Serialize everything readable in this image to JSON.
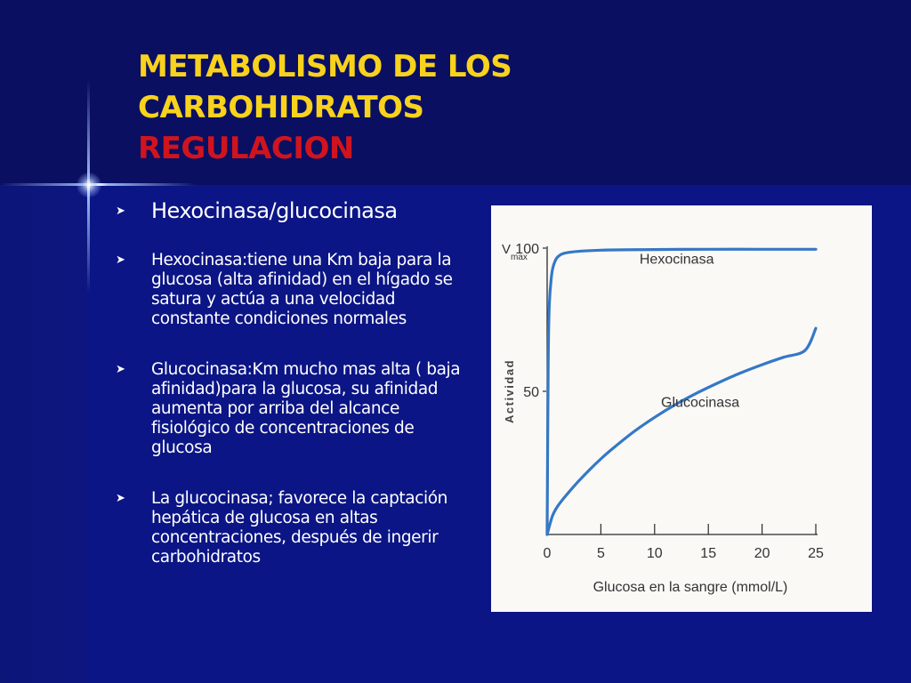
{
  "slide": {
    "title_lines": [
      "METABOLISMO DE LOS",
      "CARBOHIDRATOS",
      "REGULACION"
    ],
    "colors": {
      "background": "#0b1585",
      "title": "#f8d21c",
      "subtitle": "#d0141e",
      "curve": "#3478c6"
    }
  },
  "bullets": [
    {
      "icon": "arrow-bullet-icon",
      "text": "Hexocinasa/glucocinasa"
    },
    {
      "icon": "arrow-bullet-icon",
      "text": "Hexocinasa:tiene una Km baja para la glucosa (alta afinidad) en el hígado se satura y actúa a una velocidad constante condiciones normales"
    },
    {
      "icon": "arrow-bullet-icon",
      "text": "Glucocinasa:Km mucho mas alta ( baja afinidad)para la glucosa, su afinidad aumenta por arriba del alcance fisiológico de concentraciones de glucosa"
    },
    {
      "icon": "arrow-bullet-icon",
      "text": "La glucocinasa; favorece la captación hepática de glucosa en altas concentraciones, después de ingerir carbohidratos"
    }
  ],
  "chart_data": {
    "type": "line",
    "title": "",
    "xlabel": "Glucosa en la sangre (mmol/L)",
    "ylabel": "Actividad",
    "vmax_label": "V",
    "vmax_sub": "max",
    "xlim": [
      0,
      25
    ],
    "ylim": [
      0,
      100
    ],
    "x_ticks": [
      0,
      5,
      10,
      15,
      20,
      25
    ],
    "x_tick_labels": [
      "0",
      "5",
      "10",
      "15",
      "20",
      "25"
    ],
    "y_ticks": [
      50,
      100
    ],
    "y_tick_labels": [
      "50",
      "100"
    ],
    "grid": false,
    "series": [
      {
        "name": "Hexocinasa",
        "x": [
          0,
          0.1,
          0.2,
          0.4,
          0.6,
          1,
          2,
          5,
          10,
          15,
          20,
          25
        ],
        "y": [
          0,
          60,
          80,
          90,
          94,
          97,
          98.5,
          99.3,
          99.5,
          99.6,
          99.6,
          99.6
        ]
      },
      {
        "name": "Glucocinasa",
        "x": [
          0,
          0.5,
          1,
          2,
          3,
          4,
          5,
          6,
          8,
          10,
          12,
          14,
          16,
          18,
          20,
          22,
          24,
          25
        ],
        "y": [
          0,
          6.5,
          10,
          14.7,
          18.9,
          22.8,
          26.4,
          29.7,
          35.7,
          40.9,
          45.5,
          49.5,
          53.1,
          56.4,
          59.3,
          61.9,
          64.3,
          72
        ]
      }
    ]
  }
}
